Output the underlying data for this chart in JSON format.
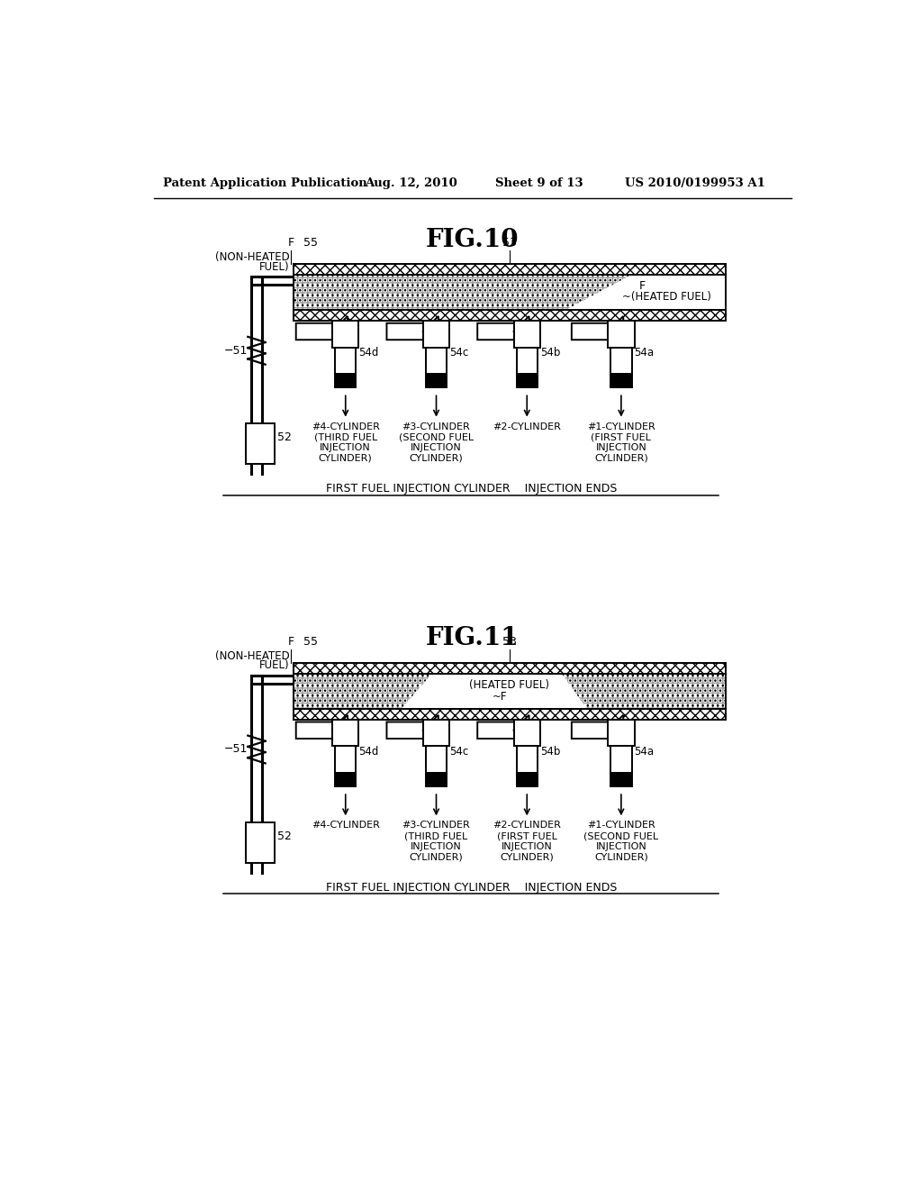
{
  "title": "Patent Application Publication",
  "date": "Aug. 12, 2010",
  "sheet": "Sheet 9 of 13",
  "patent_num": "US 2010/0199953 A1",
  "fig10_title": "FIG.10",
  "fig11_title": "FIG.11",
  "bg_color": "#ffffff",
  "fig10_bottom_label": "FIRST FUEL INJECTION CYLINDER    INJECTION ENDS",
  "fig11_bottom_label": "FIRST FUEL INJECTION CYLINDER    INJECTION ENDS",
  "fig10_cylinder_labels": [
    "#4-CYLINDER\n(THIRD FUEL\nINJECTION\nCYLINDER)",
    "#3-CYLINDER\n(SECOND FUEL\nINJECTION\nCYLINDER)",
    "#2-CYLINDER",
    "#1-CYLINDER\n(FIRST FUEL\nINJECTION\nCYLINDER)"
  ],
  "fig11_cylinder_labels": [
    "#4-CYLINDER",
    "#3-CYLINDER\n(THIRD FUEL\nINJECTION\nCYLINDER)",
    "#2-CYLINDER\n(FIRST FUEL\nINJECTION\nCYLINDER)",
    "#1-CYLINDER\n(SECOND FUEL\nINJECTION\nCYLINDER)"
  ],
  "injector_labels": [
    "54d",
    "54c",
    "54b",
    "54a"
  ],
  "fig10_heated_label": "F\n(HEATED FUEL)",
  "fig11_heated_label": "(HEATED FUEL)\n~F"
}
